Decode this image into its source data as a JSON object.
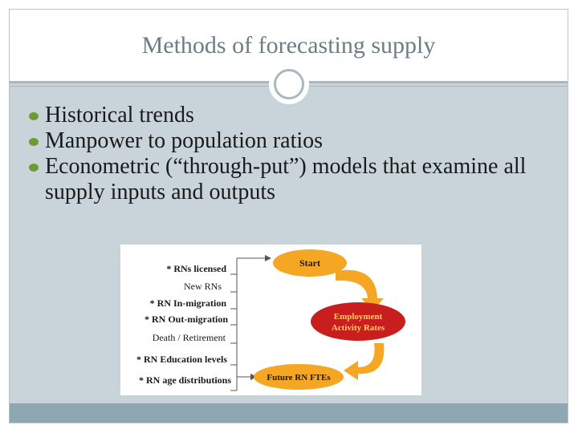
{
  "title": "Methods of forecasting supply",
  "bullets": [
    "Historical trends",
    "Manpower to population ratios",
    "Econometric (“through-put”) models that examine all supply inputs and outputs"
  ],
  "diagram": {
    "inputs": [
      "*  RNs licensed",
      "New RNs",
      "*   RN In-migration",
      "*  RN Out-migration",
      "Death / Retirement",
      "*  RN Education levels",
      "*   RN age distributions"
    ],
    "start_label": "Start",
    "employment_label_1": "Employment",
    "employment_label_2": "Activity Rates",
    "future_label": "Future RN FTEs",
    "colors": {
      "start_fill": "#f5a623",
      "employment_fill": "#c81e1e",
      "employment_text": "#ffd35a",
      "future_fill": "#f5a623",
      "arrow_fill": "#f5a623",
      "bullet": "#6b9c32"
    }
  }
}
